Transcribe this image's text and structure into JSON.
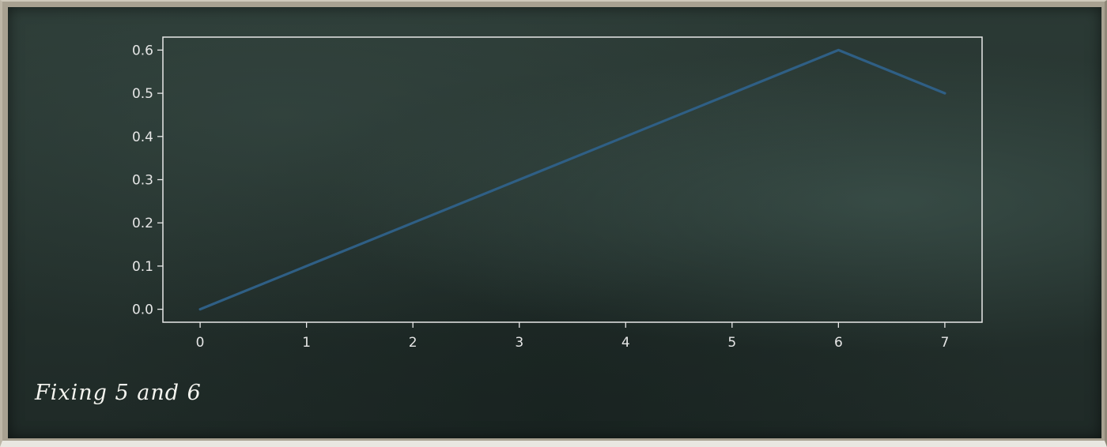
{
  "caption": "Fixing 5 and 6",
  "chart_data": {
    "type": "line",
    "x": [
      0,
      1,
      2,
      3,
      4,
      5,
      6,
      7
    ],
    "series": [
      {
        "values": [
          0.0,
          0.1,
          0.2,
          0.3,
          0.4,
          0.5,
          0.6,
          0.5
        ]
      }
    ],
    "x_ticks": [
      "0",
      "1",
      "2",
      "3",
      "4",
      "5",
      "6",
      "7"
    ],
    "y_ticks": [
      "0.0",
      "0.1",
      "0.2",
      "0.3",
      "0.4",
      "0.5",
      "0.6"
    ],
    "xlim": [
      -0.35,
      7.35
    ],
    "ylim": [
      -0.03,
      0.63
    ],
    "grid": false,
    "line_color": "#2f5f85",
    "axes_color": "#e8e8e8",
    "background_color": "#26332f"
  }
}
